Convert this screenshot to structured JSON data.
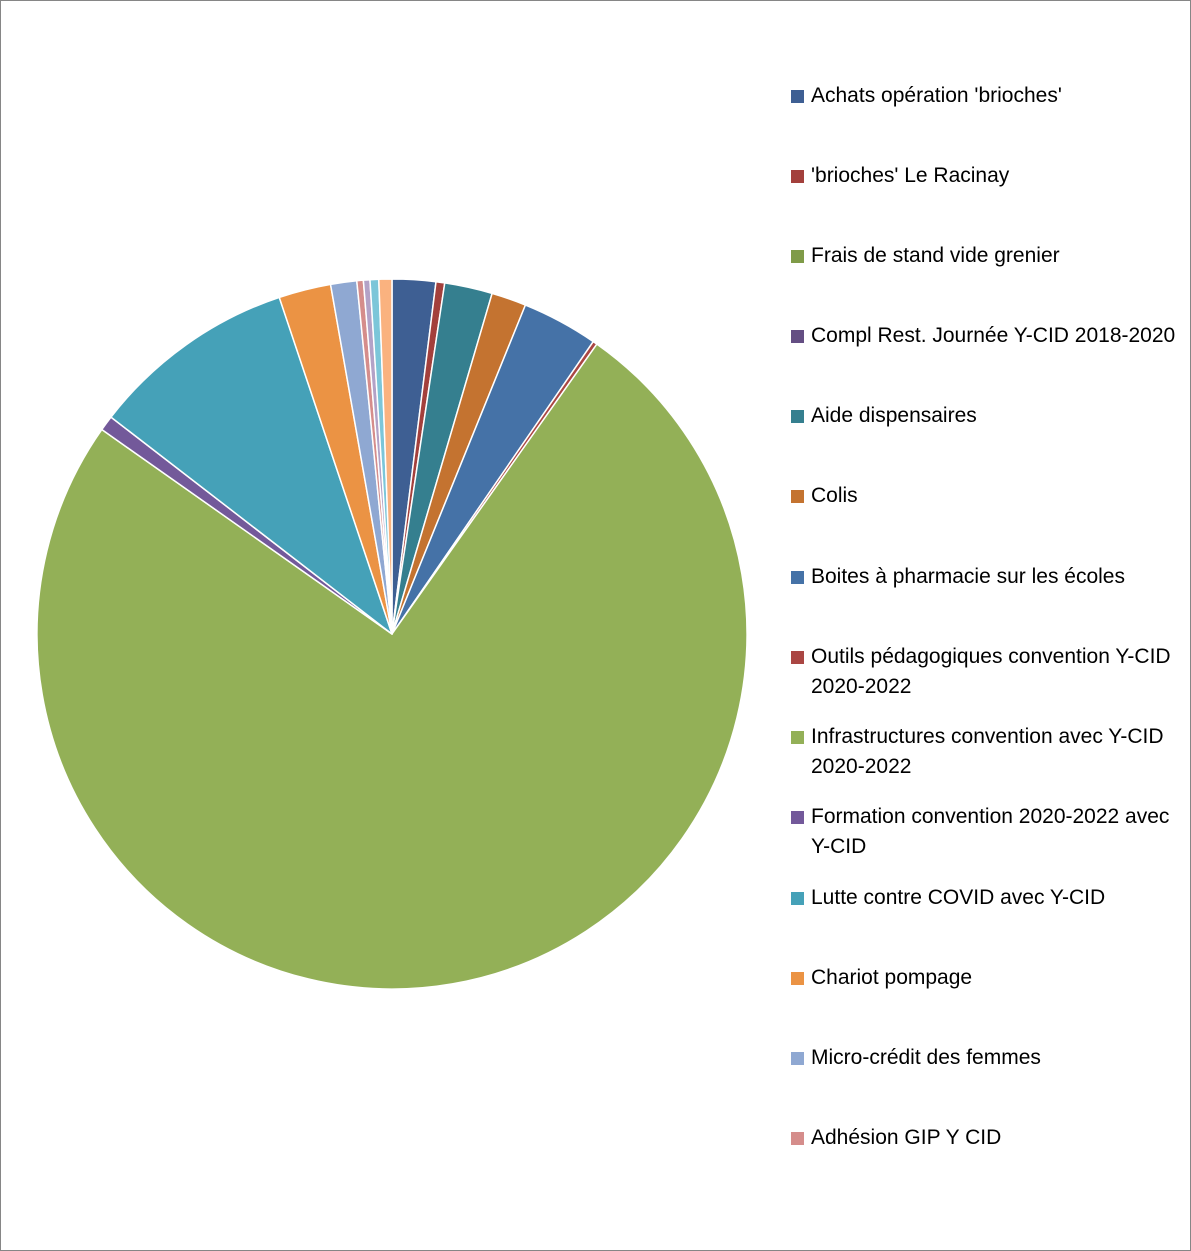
{
  "chart_data": {
    "type": "pie",
    "title": "",
    "legend_position": "right",
    "start_angle_deg": 0,
    "direction": "clockwise",
    "slices": [
      {
        "label": "Achats opération 'brioches'",
        "value": 2.0,
        "color": "#3E5F93"
      },
      {
        "label": " 'brioches' Le Racinay",
        "value": 0.4,
        "color": "#A3403C"
      },
      {
        "label": "Frais de stand vide grenier",
        "value": 0.0,
        "color": "#7F9B48"
      },
      {
        "label": "Compl Rest. Journée Y-CID 2018-2020",
        "value": 0.0,
        "color": "#644E83"
      },
      {
        "label": "Aide dispensaires",
        "value": 2.2,
        "color": "#357F8F"
      },
      {
        "label": "Colis",
        "value": 1.6,
        "color": "#C47330"
      },
      {
        "label": "Boites à pharmacie sur les écoles",
        "value": 3.5,
        "color": "#4572A7"
      },
      {
        "label": "Outils pédagogiques convention Y-CID 2020-2022",
        "value": 0.2,
        "color": "#AA4643"
      },
      {
        "label": "Infrastructures convention avec Y-CID 2020-2022",
        "value": 75.8,
        "color": "#93B057"
      },
      {
        "label": "Formation convention 2020-2022 avec Y-CID",
        "value": 0.7,
        "color": "#73599A"
      },
      {
        "label": "Lutte contre COVID avec Y-CID",
        "value": 9.5,
        "color": "#45A1B8"
      },
      {
        "label": "Chariot pompage",
        "value": 2.4,
        "color": "#EB9344"
      },
      {
        "label": "Micro-crédit des femmes",
        "value": 1.2,
        "color": "#8FA8D2"
      },
      {
        "label": "Adhésion GIP Y CID",
        "value": 0.3,
        "color": "#D58D8B"
      },
      {
        "label": "",
        "value": 0.3,
        "color": "#B3A2C7"
      },
      {
        "label": "",
        "value": 0.4,
        "color": "#7CC6D9"
      },
      {
        "label": "",
        "value": 0.6,
        "color": "#FAB27F"
      }
    ]
  }
}
